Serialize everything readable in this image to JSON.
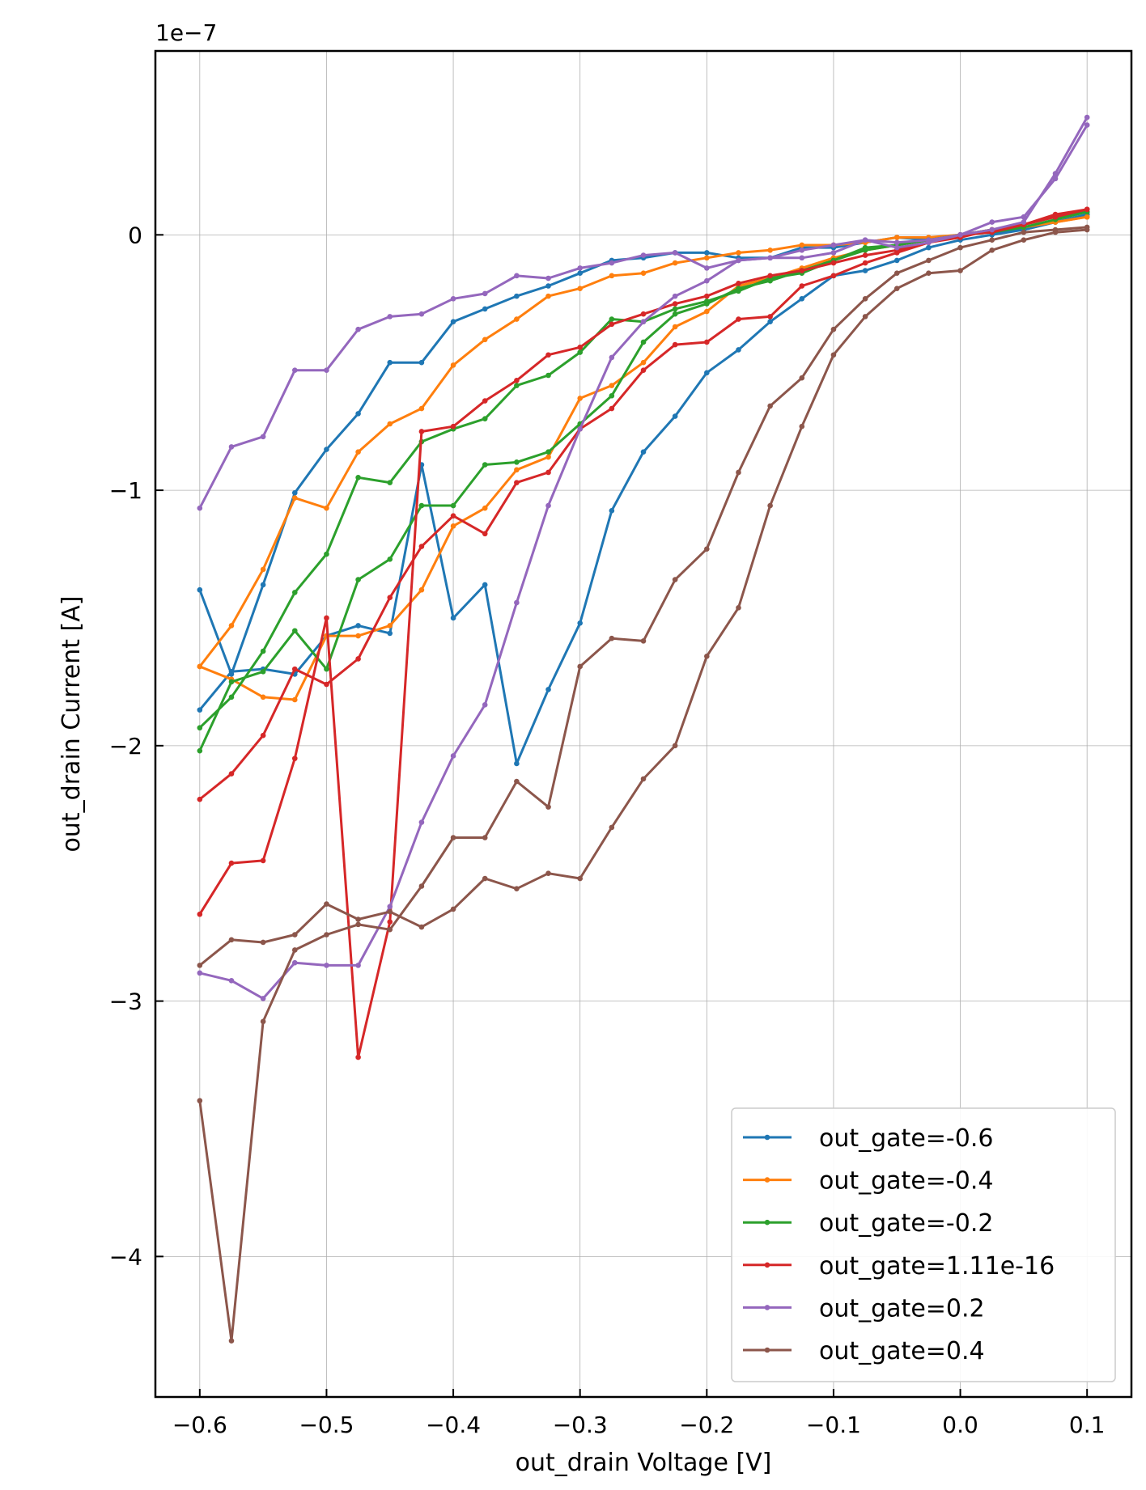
{
  "chart_data": {
    "type": "line",
    "title": "",
    "xlabel": "out_drain Voltage [V]",
    "ylabel": "out_drain Current [A]",
    "y_offset_label": "1e−7",
    "xlim": [
      -0.635,
      0.135
    ],
    "ylim": [
      -4.55,
      0.72
    ],
    "grid": true,
    "legend_position": "lower-right",
    "x_ticks": [
      -0.6,
      -0.5,
      -0.4,
      -0.3,
      -0.2,
      -0.1,
      0.0,
      0.1
    ],
    "x_tick_labels": [
      "−0.6",
      "−0.5",
      "−0.4",
      "−0.3",
      "−0.2",
      "−0.1",
      "0.0",
      "0.1"
    ],
    "y_ticks": [
      0,
      -1,
      -2,
      -3,
      -4
    ],
    "y_tick_labels": [
      "0",
      "−1",
      "−2",
      "−3",
      "−4"
    ],
    "x": [
      -0.6,
      -0.575,
      -0.55,
      -0.525,
      -0.5,
      -0.475,
      -0.45,
      -0.425,
      -0.4,
      -0.375,
      -0.35,
      -0.325,
      -0.3,
      -0.275,
      -0.25,
      -0.225,
      -0.2,
      -0.175,
      -0.15,
      -0.125,
      -0.1,
      -0.075,
      -0.05,
      -0.025,
      0.0,
      0.025,
      0.05,
      0.075,
      0.1
    ],
    "series": [
      {
        "name": "out_gate=-0.6",
        "color": "#1f77b4",
        "forward": [
          -1.39,
          -1.72,
          -1.37,
          -1.01,
          -0.84,
          -0.7,
          -0.5,
          -0.5,
          -0.34,
          -0.29,
          -0.24,
          -0.2,
          -0.15,
          -0.1,
          -0.09,
          -0.07,
          -0.07,
          -0.09,
          -0.09,
          -0.05,
          -0.05,
          -0.03,
          -0.01,
          -0.02,
          0.0,
          0.01,
          0.02,
          0.05,
          0.08
        ],
        "reverse": [
          -1.86,
          -1.71,
          -1.7,
          -1.72,
          -1.57,
          -1.53,
          -1.56,
          -0.9,
          -1.5,
          -1.37,
          -2.07,
          -1.78,
          -1.52,
          -1.08,
          -0.85,
          -0.71,
          -0.54,
          -0.45,
          -0.34,
          -0.25,
          -0.16,
          -0.14,
          -0.1,
          -0.05,
          -0.02,
          0.0,
          0.02,
          0.05,
          0.08
        ]
      },
      {
        "name": "out_gate=-0.4",
        "color": "#ff7f0e",
        "forward": [
          -1.69,
          -1.53,
          -1.31,
          -1.03,
          -1.07,
          -0.85,
          -0.74,
          -0.68,
          -0.51,
          -0.41,
          -0.33,
          -0.24,
          -0.21,
          -0.16,
          -0.15,
          -0.11,
          -0.09,
          -0.07,
          -0.06,
          -0.04,
          -0.04,
          -0.03,
          -0.01,
          -0.01,
          0.0,
          0.02,
          0.03,
          0.05,
          0.07
        ],
        "reverse": [
          -1.69,
          -1.74,
          -1.81,
          -1.82,
          -1.57,
          -1.57,
          -1.53,
          -1.39,
          -1.14,
          -1.07,
          -0.92,
          -0.87,
          -0.64,
          -0.59,
          -0.5,
          -0.36,
          -0.3,
          -0.2,
          -0.17,
          -0.13,
          -0.09,
          -0.06,
          -0.04,
          -0.02,
          0.0,
          0.02,
          0.03,
          0.05,
          0.07
        ]
      },
      {
        "name": "out_gate=-0.2",
        "color": "#2ca02c",
        "forward": [
          -1.93,
          -1.81,
          -1.63,
          -1.4,
          -1.25,
          -0.95,
          -0.97,
          -0.81,
          -0.76,
          -0.72,
          -0.59,
          -0.55,
          -0.46,
          -0.33,
          -0.34,
          -0.29,
          -0.26,
          -0.22,
          -0.17,
          -0.15,
          -0.1,
          -0.05,
          -0.04,
          -0.02,
          0.0,
          0.01,
          0.03,
          0.06,
          0.09
        ],
        "reverse": [
          -2.02,
          -1.75,
          -1.71,
          -1.55,
          -1.7,
          -1.35,
          -1.27,
          -1.06,
          -1.06,
          -0.9,
          -0.89,
          -0.85,
          -0.74,
          -0.63,
          -0.42,
          -0.31,
          -0.27,
          -0.21,
          -0.18,
          -0.14,
          -0.1,
          -0.06,
          -0.04,
          -0.02,
          0.0,
          0.02,
          0.04,
          0.07,
          0.09
        ]
      },
      {
        "name": "out_gate=1.11e-16",
        "color": "#d62728",
        "forward": [
          -2.21,
          -2.11,
          -1.96,
          -1.7,
          -1.76,
          -1.66,
          -1.42,
          -1.22,
          -1.1,
          -1.17,
          -0.97,
          -0.93,
          -0.76,
          -0.68,
          -0.53,
          -0.43,
          -0.42,
          -0.33,
          -0.32,
          -0.2,
          -0.16,
          -0.11,
          -0.07,
          -0.03,
          0.0,
          0.01,
          0.04,
          0.07,
          0.1
        ],
        "reverse": [
          -2.66,
          -2.46,
          -2.45,
          -2.05,
          -1.5,
          -3.22,
          -2.69,
          -0.77,
          -0.75,
          -0.65,
          -0.57,
          -0.47,
          -0.44,
          -0.35,
          -0.31,
          -0.27,
          -0.24,
          -0.19,
          -0.16,
          -0.14,
          -0.11,
          -0.08,
          -0.06,
          -0.03,
          -0.01,
          0.02,
          0.04,
          0.08,
          0.1
        ]
      },
      {
        "name": "out_gate=0.2",
        "color": "#9467bd",
        "forward": [
          -1.07,
          -0.83,
          -0.79,
          -0.53,
          -0.53,
          -0.37,
          -0.32,
          -0.31,
          -0.25,
          -0.23,
          -0.16,
          -0.17,
          -0.13,
          -0.11,
          -0.08,
          -0.07,
          -0.13,
          -0.1,
          -0.09,
          -0.09,
          -0.07,
          -0.02,
          -0.05,
          -0.03,
          0.0,
          0.05,
          0.07,
          0.22,
          0.43
        ],
        "reverse": [
          -2.89,
          -2.92,
          -2.99,
          -2.85,
          -2.86,
          -2.86,
          -2.63,
          -2.3,
          -2.04,
          -1.84,
          -1.44,
          -1.06,
          -0.76,
          -0.48,
          -0.34,
          -0.24,
          -0.18,
          -0.1,
          -0.09,
          -0.06,
          -0.04,
          -0.02,
          -0.03,
          -0.02,
          0.0,
          0.02,
          0.05,
          0.24,
          0.46
        ]
      },
      {
        "name": "out_gate=0.4",
        "color": "#8c564b",
        "forward": [
          -2.86,
          -2.76,
          -2.77,
          -2.74,
          -2.62,
          -2.68,
          -2.65,
          -2.71,
          -2.64,
          -2.52,
          -2.56,
          -2.5,
          -2.52,
          -2.32,
          -2.13,
          -2.0,
          -1.65,
          -1.46,
          -1.06,
          -0.75,
          -0.47,
          -0.32,
          -0.21,
          -0.15,
          -0.14,
          -0.06,
          -0.02,
          0.01,
          0.02
        ],
        "reverse": [
          -3.39,
          -4.33,
          -3.08,
          -2.8,
          -2.74,
          -2.7,
          -2.72,
          -2.55,
          -2.36,
          -2.36,
          -2.14,
          -2.24,
          -1.69,
          -1.58,
          -1.59,
          -1.35,
          -1.23,
          -0.93,
          -0.67,
          -0.56,
          -0.37,
          -0.25,
          -0.15,
          -0.1,
          -0.05,
          -0.02,
          0.01,
          0.02,
          0.03
        ]
      }
    ]
  }
}
